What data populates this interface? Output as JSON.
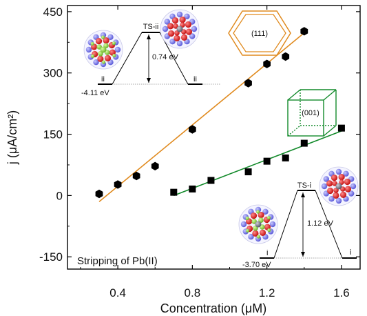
{
  "chart_data": {
    "type": "scatter",
    "xlabel": "Concentration (μM)",
    "ylabel": "j (μA/cm²)",
    "xlim": [
      0.13,
      1.7
    ],
    "ylim": [
      -180,
      465
    ],
    "xticks": [
      0.4,
      0.8,
      1.2,
      1.6
    ],
    "yticks": [
      -150,
      0,
      150,
      300,
      450
    ],
    "grid": false,
    "legend": "none",
    "annotation": "Stripping of Pb(II)",
    "series": [
      {
        "marker": "hexagon",
        "color": "#000000",
        "fit_color": "#e08a1e",
        "x": [
          0.3,
          0.4,
          0.5,
          0.6,
          0.8,
          1.1,
          1.2,
          1.3,
          1.4
        ],
        "y": [
          4,
          27,
          48,
          72,
          162,
          275,
          322,
          340,
          402
        ],
        "fit": {
          "x": [
            0.3,
            1.4
          ],
          "y": [
            -15,
            398
          ]
        }
      },
      {
        "marker": "square",
        "color": "#000000",
        "fit_color": "#128a2a",
        "x": [
          0.7,
          0.8,
          0.9,
          1.1,
          1.2,
          1.3,
          1.4,
          1.6
        ],
        "y": [
          8,
          16,
          37,
          58,
          84,
          92,
          128,
          165
        ],
        "fit": {
          "x": [
            0.7,
            1.6
          ],
          "y": [
            0,
            158
          ]
        }
      }
    ],
    "insets": {
      "facet_111": {
        "label": "(111)",
        "color": "#e08a1e"
      },
      "facet_001": {
        "label": "(001)",
        "color": "#128a2a"
      },
      "energy_111": {
        "initial": "ii",
        "final": "ii",
        "ts": "TS-ii",
        "initial_energy": "-4.11 eV",
        "barrier": "0.74 eV"
      },
      "energy_001": {
        "initial": "i",
        "final": "i",
        "ts": "TS-i",
        "initial_energy": "-3.70 eV",
        "barrier": "1.12 eV"
      }
    }
  }
}
